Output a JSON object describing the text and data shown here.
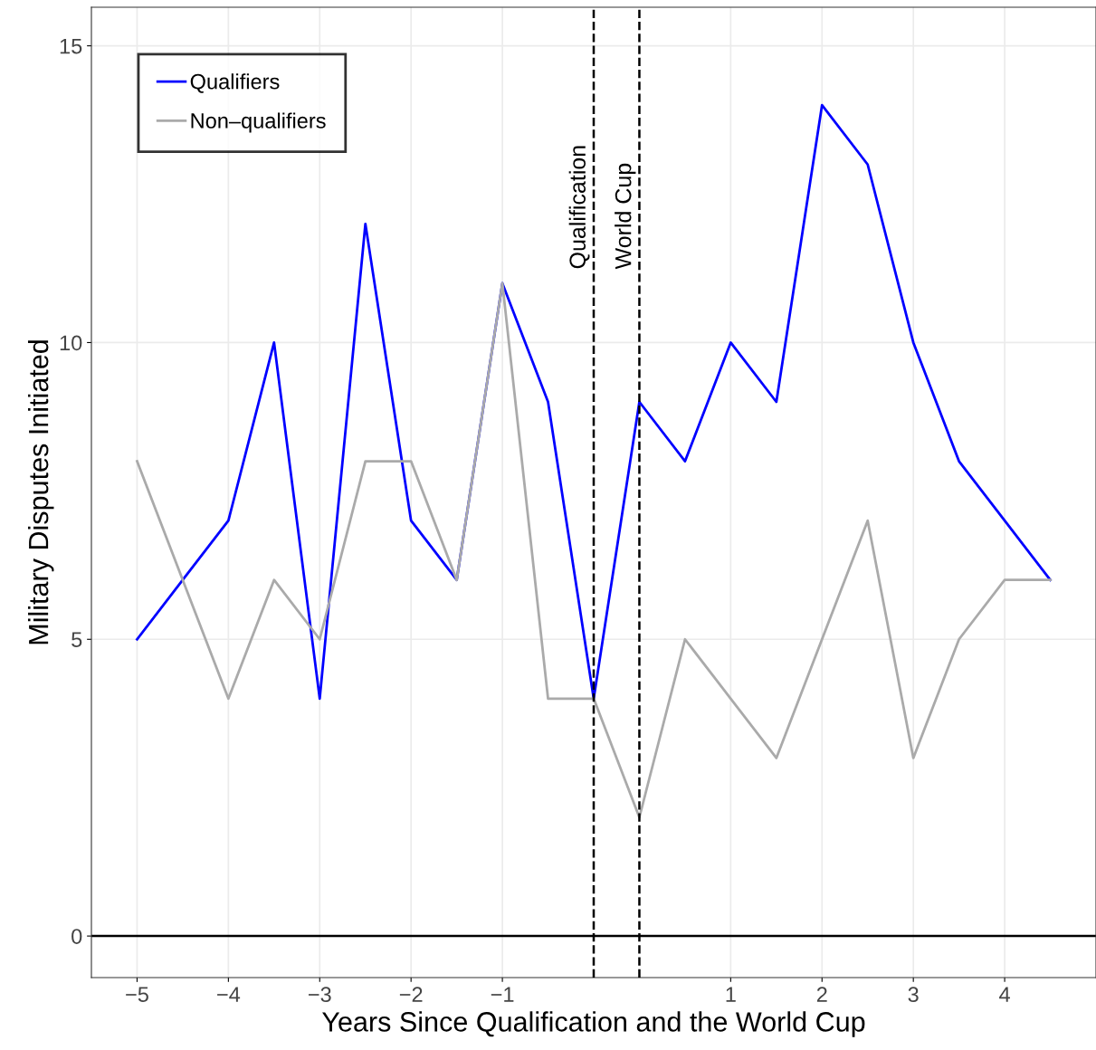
{
  "chart_data": {
    "type": "line",
    "xlabel": "Years Since Qualification and the World Cup",
    "ylabel": "Military Disputes Initiated",
    "x": [
      -5,
      -4.5,
      -4,
      -3.5,
      -3,
      -2.5,
      -2,
      -1.5,
      -1,
      -0.5,
      0,
      0.5,
      1,
      1.5,
      2,
      2.5,
      3,
      3.5,
      4,
      4.5,
      5
    ],
    "series": [
      {
        "name": "Qualifiers",
        "color": "#0000ff",
        "values": [
          5,
          6,
          7,
          10,
          4,
          12,
          7,
          6,
          11,
          9,
          4,
          9,
          8,
          10,
          9,
          14,
          13,
          10,
          8,
          7,
          6
        ]
      },
      {
        "name": "Non–qualifiers",
        "color": "#aaaaaa",
        "values": [
          8,
          6,
          4,
          6,
          5,
          8,
          8,
          6,
          11,
          4,
          4,
          2,
          5,
          4,
          3,
          5,
          7,
          3,
          5,
          6,
          6
        ]
      }
    ],
    "xlim": [
      -5.5,
      5.5
    ],
    "xticks": [
      -5,
      -4,
      -3,
      -2,
      -1,
      {
        "value": 1.5,
        "label": "1"
      },
      {
        "value": 2.5,
        "label": "2"
      },
      {
        "value": 3.5,
        "label": "3"
      },
      {
        "value": 4.5,
        "label": "4"
      }
    ],
    "ylim": [
      -0.7,
      15.65
    ],
    "yticks": [
      0,
      5,
      10,
      15
    ],
    "ref_lines": [
      {
        "axis": "x",
        "value": 0,
        "label": "Qualification",
        "color": "#000000",
        "line_style": "dashed"
      },
      {
        "axis": "x",
        "value": 0.5,
        "label": "World Cup",
        "color": "#000000",
        "line_style": "dashed"
      },
      {
        "axis": "y",
        "value": 0,
        "color": "#000000",
        "line_style": "solid"
      }
    ],
    "grid": true,
    "legend": "top left",
    "marker": "none",
    "line_style": "solid"
  }
}
